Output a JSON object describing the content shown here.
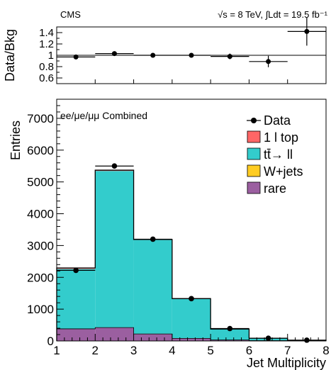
{
  "header": {
    "experiment": "CMS",
    "energy_lumi": "√s = 8 TeV,  ∫Ldt = 19.5 fb⁻¹"
  },
  "chart_data": [
    {
      "type": "bar",
      "panel": "ratio",
      "ylabel": "Data/Bkg",
      "xlim": [
        1,
        8
      ],
      "ylim": [
        0.5,
        1.5
      ],
      "yticks": [
        "0.6",
        "0.8",
        "1",
        "1.2",
        "1.4"
      ],
      "reference_line": 1.0,
      "points": [
        {
          "x": 1.5,
          "y": 0.97,
          "err": 0.02
        },
        {
          "x": 2.5,
          "y": 1.03,
          "err": 0.015
        },
        {
          "x": 3.5,
          "y": 1.0,
          "err": 0.02
        },
        {
          "x": 4.5,
          "y": 1.0,
          "err": 0.03
        },
        {
          "x": 5.5,
          "y": 0.98,
          "err": 0.05
        },
        {
          "x": 6.5,
          "y": 0.89,
          "err": 0.1
        },
        {
          "x": 7.5,
          "y": 1.42,
          "err": 0.25
        }
      ]
    },
    {
      "type": "bar",
      "panel": "main",
      "annotation": "ee/μe/μμ Combined",
      "ylabel": "Entries",
      "xlabel": "Jet Multiplicity",
      "xlim": [
        1,
        8
      ],
      "ylim": [
        0,
        7600
      ],
      "xticks": [
        "1",
        "2",
        "3",
        "4",
        "5",
        "6",
        "7",
        "8"
      ],
      "yticks": [
        "0",
        "1000",
        "2000",
        "3000",
        "4000",
        "5000",
        "6000",
        "7000"
      ],
      "bin_edges": [
        1,
        2,
        3,
        4,
        5,
        6,
        7,
        8
      ],
      "legend_position": "top-right",
      "series": [
        {
          "name": "rare",
          "color": "#9b5fa0",
          "values": [
            380,
            420,
            220,
            80,
            30,
            10,
            3
          ]
        },
        {
          "name": "W+jets",
          "color": "#ffcc22",
          "values": [
            5,
            5,
            5,
            3,
            2,
            1,
            0
          ]
        },
        {
          "name": "tt̄→ ll",
          "color": "#33cccc",
          "values": [
            1880,
            4920,
            2950,
            1240,
            340,
            75,
            15
          ]
        },
        {
          "name": "1 l top",
          "color": "#ff6666",
          "values": [
            30,
            25,
            15,
            8,
            3,
            1,
            0
          ]
        }
      ],
      "data": {
        "name": "Data",
        "x": [
          1.5,
          2.5,
          3.5,
          4.5,
          5.5,
          6.5,
          7.5
        ],
        "y": [
          2220,
          5500,
          3200,
          1330,
          390,
          85,
          25
        ]
      }
    }
  ]
}
